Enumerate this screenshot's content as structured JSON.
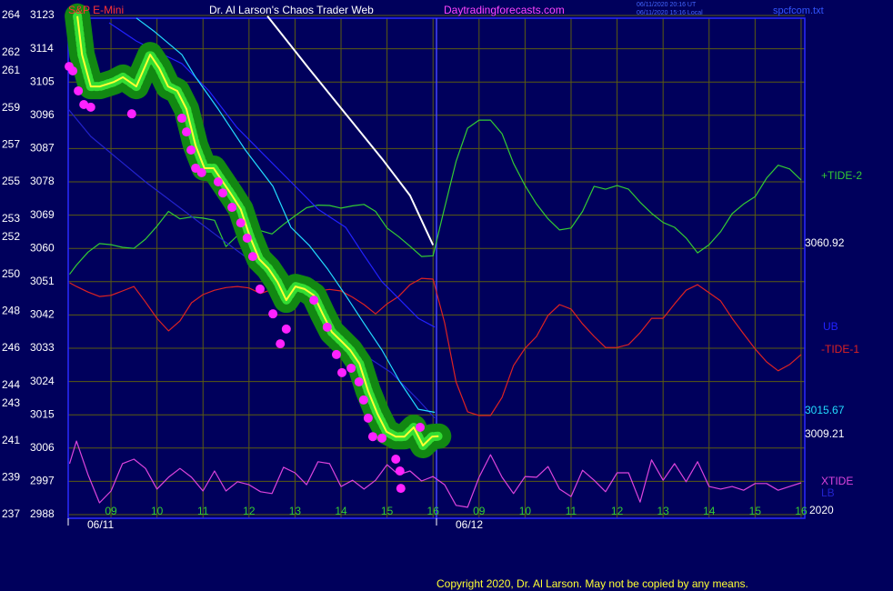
{
  "chart_data": {
    "type": "line",
    "title": "Dr. Al Larson's Chaos Trader Web",
    "instrument": "S&P E-Mini",
    "site": "Daytradingforecasts.com",
    "timestamps": [
      "06/11/2020 20:16 UT",
      "06/11/2020 15:16 Local"
    ],
    "file": "spcfcom.txt",
    "copyright": "Copyright 2020, Dr. Al Larson. May not be copied by any means.",
    "date_labels": [
      "06/11",
      "06/12"
    ],
    "year_label": "2020",
    "grid": true,
    "xlim": [
      0.07,
      16.08
    ],
    "xticks": [
      {
        "value": 1,
        "label": "09"
      },
      {
        "value": 2,
        "label": "10"
      },
      {
        "value": 3,
        "label": "11"
      },
      {
        "value": 4,
        "label": "12"
      },
      {
        "value": 5,
        "label": "13"
      },
      {
        "value": 6,
        "label": "14"
      },
      {
        "value": 7,
        "label": "15"
      },
      {
        "value": 8,
        "label": "16"
      },
      {
        "value": 9,
        "label": "09"
      },
      {
        "value": 10,
        "label": "10"
      },
      {
        "value": 11,
        "label": "11"
      },
      {
        "value": 12,
        "label": "12"
      },
      {
        "value": 13,
        "label": "13"
      },
      {
        "value": 14,
        "label": "14"
      },
      {
        "value": 15,
        "label": "15"
      },
      {
        "value": 16,
        "label": "16"
      }
    ],
    "ylim": [
      2988,
      3123
    ],
    "yticks": [
      3123,
      3114,
      3105,
      3096,
      3087,
      3078,
      3069,
      3060,
      3051,
      3042,
      3033,
      3024,
      3015,
      3006,
      2997,
      2988
    ],
    "y2lim": [
      237,
      264
    ],
    "y2ticks": [
      264,
      262,
      261,
      259,
      257,
      255,
      253,
      252,
      250,
      248,
      246,
      244,
      243,
      241,
      239,
      237
    ],
    "series": [
      {
        "name": "+TIDE-2",
        "color": "#33cc33",
        "x": [
          0.1,
          0.25,
          0.5,
          0.75,
          1,
          1.25,
          1.5,
          1.75,
          2,
          2.25,
          2.5,
          2.75,
          3,
          3.25,
          3.5,
          3.75,
          4,
          4.25,
          4.5,
          4.75,
          5,
          5.25,
          5.5,
          5.75,
          6,
          6.25,
          6.5,
          6.75,
          7,
          7.25,
          7.5,
          7.75,
          8,
          8.25,
          8.5,
          8.75,
          9,
          9.25,
          9.5,
          9.75,
          10,
          10.25,
          10.5,
          10.75,
          11,
          11.25,
          11.5,
          11.75,
          12,
          12.25,
          12.5,
          12.75,
          13,
          13.25,
          13.5,
          13.75,
          14,
          14.25,
          14.5,
          14.75,
          15,
          15.25,
          15.5,
          15.75,
          16
        ],
        "values": [
          3053,
          3055.5,
          3059,
          3061.3,
          3061,
          3060.3,
          3060,
          3062.5,
          3066,
          3070,
          3068,
          3068.5,
          3068.2,
          3067.6,
          3060.5,
          3063.5,
          3064.6,
          3064.8,
          3063.9,
          3066.5,
          3068.8,
          3071,
          3071.7,
          3071.6,
          3070.9,
          3071.5,
          3071.9,
          3070,
          3065.5,
          3063.2,
          3060.6,
          3057.8,
          3058,
          3071,
          3083.5,
          3092.5,
          3094.7,
          3094.7,
          3091,
          3083,
          3077,
          3072,
          3068,
          3065,
          3065.5,
          3070,
          3076.8,
          3076,
          3077,
          3076,
          3072.5,
          3069.5,
          3067,
          3065.7,
          3062.8,
          3058.8,
          3061,
          3064.5,
          3069.4,
          3072,
          3074,
          3079,
          3082.5,
          3081.5,
          3078.5
        ]
      },
      {
        "name": "-TIDE-1",
        "color": "#dd2222",
        "x": [
          0.1,
          0.25,
          0.5,
          0.75,
          1,
          1.25,
          1.5,
          1.75,
          2,
          2.25,
          2.5,
          2.75,
          3,
          3.25,
          3.5,
          3.75,
          4,
          4.25,
          4.5,
          4.75,
          5,
          5.25,
          5.5,
          5.75,
          6,
          6.25,
          6.5,
          6.75,
          7,
          7.25,
          7.5,
          7.75,
          8,
          8.25,
          8.5,
          8.75,
          9,
          9.25,
          9.5,
          9.75,
          10,
          10.25,
          10.5,
          10.75,
          11,
          11.25,
          11.5,
          11.75,
          12,
          12.25,
          12.5,
          12.75,
          13,
          13.25,
          13.5,
          13.75,
          14,
          14.25,
          14.5,
          14.75,
          15,
          15.25,
          15.5,
          15.75,
          16
        ],
        "values": [
          3050.7,
          3049.7,
          3048.2,
          3047,
          3047.3,
          3048.5,
          3049.7,
          3045.5,
          3041.1,
          3037.7,
          3040.4,
          3045.3,
          3047.5,
          3048.7,
          3049.4,
          3049.7,
          3049.3,
          3047.8,
          3048.9,
          3048.7,
          3048.5,
          3048.1,
          3048.5,
          3048.9,
          3048.5,
          3046.8,
          3044.8,
          3042.3,
          3045,
          3047,
          3050.2,
          3051.9,
          3051.7,
          3039.9,
          3023.9,
          3015.8,
          3014.8,
          3014.8,
          3019.7,
          3028.3,
          3033,
          3036.2,
          3041.9,
          3044.8,
          3043.6,
          3039.6,
          3036.2,
          3033.2,
          3033.2,
          3034,
          3037.2,
          3041.1,
          3041.1,
          3045,
          3048.7,
          3050.2,
          3048,
          3045.8,
          3041.1,
          3036.9,
          3032.8,
          3029.3,
          3026.9,
          3028.6,
          3031.3
        ]
      },
      {
        "name": "XTIDE",
        "color": "#dd44dd",
        "x": [
          0.1,
          0.25,
          0.5,
          0.75,
          1,
          1.25,
          1.5,
          1.75,
          2,
          2.25,
          2.5,
          2.75,
          3,
          3.25,
          3.5,
          3.75,
          4,
          4.25,
          4.5,
          4.75,
          5,
          5.25,
          5.5,
          5.75,
          6,
          6.25,
          6.5,
          6.75,
          7,
          7.25,
          7.5,
          7.75,
          8,
          8.25,
          8.5,
          8.75,
          9,
          9.25,
          9.5,
          9.75,
          10,
          10.25,
          10.5,
          10.75,
          11,
          11.25,
          11.5,
          11.75,
          12,
          12.25,
          12.5,
          12.75,
          13,
          13.25,
          13.5,
          13.75,
          14,
          14.25,
          14.5,
          14.75,
          15,
          15.25,
          15.5,
          15.75,
          16
        ],
        "values": [
          3001.8,
          3007.9,
          2998.8,
          2991.2,
          2994.4,
          3001.8,
          3003,
          3000.5,
          2994.9,
          2998.1,
          3000.5,
          2998.1,
          2994.4,
          2999.8,
          2994.4,
          2996.9,
          2996.1,
          2994.2,
          2993.7,
          3000.8,
          2999.3,
          2996.1,
          3002.3,
          3001.8,
          2995.6,
          2997.3,
          2994.9,
          2997.3,
          3001.5,
          2998.8,
          2999.8,
          2997.1,
          2998.3,
          2996.1,
          2990.5,
          2990,
          2998.1,
          3004.2,
          2998.1,
          2993.7,
          2998.3,
          2998.1,
          3001,
          2994.9,
          2992.9,
          3000,
          2997.3,
          2994.2,
          2999.3,
          2999.3,
          2991.4,
          3002.8,
          2997.3,
          3001.8,
          2996.9,
          3002.3,
          2995.6,
          2994.9,
          2995.6,
          2994.6,
          2996.4,
          2996.4,
          2994.6,
          2995.6,
          2996.6
        ]
      },
      {
        "name": "UB",
        "color": "#2222ff",
        "x": [
          0.96,
          1.55,
          2.14,
          2.54,
          3.13,
          3.73,
          4.32,
          4.91,
          5.5,
          6.1,
          6.49,
          6.89,
          7.28,
          7.68,
          8.04
        ],
        "values": [
          3121,
          3116.1,
          3112.4,
          3110,
          3102.6,
          3092.8,
          3085.4,
          3078,
          3070.6,
          3065.7,
          3058.3,
          3051,
          3046.1,
          3041.1,
          3038.7
        ]
      },
      {
        "name": "LB",
        "color": "#2222cc",
        "x": [
          0.07,
          0.56,
          1.16,
          1.75,
          2.54,
          3.33,
          4.12,
          4.91,
          5.7,
          6.49,
          7.09,
          7.68,
          8.04
        ],
        "values": [
          3097.7,
          3090.3,
          3084.1,
          3078,
          3070.6,
          3063.2,
          3055.9,
          3048.5,
          3039.9,
          3031.3,
          3026.4,
          3019,
          3014.1
        ]
      },
      {
        "color": "#22ddff",
        "x": [
          1.55,
          1.95,
          2.54,
          2.84,
          3.33,
          3.92,
          4.52,
          4.91,
          5.31,
          5.7,
          6.1,
          6.49,
          6.89,
          7.28,
          7.68,
          8.04
        ],
        "values": [
          3122.3,
          3118.6,
          3112.4,
          3106.3,
          3097.7,
          3086.6,
          3076.8,
          3065.7,
          3060.8,
          3054.6,
          3047.3,
          3039.9,
          3032.5,
          3023.9,
          3016.5,
          3015.67
        ]
      },
      {
        "color": "#ffffff",
        "x": [
          4.4,
          5.3,
          6.1,
          6.9,
          7.5,
          8.0
        ],
        "values": [
          3122.8,
          3108.7,
          3096.4,
          3084.1,
          3074.3,
          3060.92
        ]
      },
      {
        "color": "#ffff33",
        "x": [
          0.27,
          0.37,
          0.56,
          0.76,
          1.06,
          1.26,
          1.55,
          1.85,
          2.05,
          2.24,
          2.44,
          2.64,
          2.84,
          3.03,
          3.23,
          3.43,
          3.63,
          3.82,
          4.02,
          4.22,
          4.42,
          4.62,
          4.81,
          5.01,
          5.21,
          5.41,
          5.6,
          5.8,
          6.0,
          6.2,
          6.4,
          6.59,
          6.79,
          6.99,
          7.19,
          7.38,
          7.58,
          7.78,
          7.98,
          8.12
        ],
        "values": [
          3122.8,
          3112.4,
          3103.8,
          3103.8,
          3105,
          3106.3,
          3103.8,
          3112.4,
          3108.7,
          3103.8,
          3102.6,
          3097.7,
          3087.8,
          3081.7,
          3081.7,
          3078,
          3074.3,
          3070.6,
          3063.2,
          3057.1,
          3054.6,
          3050.9,
          3046,
          3049.7,
          3049,
          3047.3,
          3042.3,
          3037.4,
          3035,
          3032.5,
          3028.8,
          3021.4,
          3015.3,
          3010.4,
          3009.1,
          3009.1,
          3011.6,
          3006.7,
          3009.1,
          3009.21
        ]
      },
      {
        "type": "scatter",
        "color": "#ff22ff",
        "x": [
          0.09,
          0.17,
          0.29,
          0.41,
          0.56,
          1.45,
          2.54,
          2.64,
          2.74,
          2.84,
          2.97,
          3.33,
          3.43,
          3.63,
          3.82,
          3.96,
          4.08,
          4.24,
          4.52,
          4.68,
          4.81,
          5.41,
          5.7,
          5.9,
          6.02,
          6.22,
          6.39,
          6.49,
          6.59,
          6.69,
          6.89,
          7.19,
          7.28,
          7.3,
          7.72
        ],
        "values": [
          3109.2,
          3108,
          3102.6,
          3098.9,
          3098.2,
          3096.4,
          3095.2,
          3091.5,
          3086.6,
          3081.7,
          3080.5,
          3078,
          3075,
          3071.1,
          3066.9,
          3062.8,
          3057.8,
          3049,
          3042.3,
          3034.2,
          3038.2,
          3046,
          3038.7,
          3031.3,
          3026.4,
          3027.6,
          3023.9,
          3019,
          3014.1,
          3009.1,
          3008.7,
          3003,
          2999.8,
          2995.1,
          3011.6
        ]
      }
    ]
  }
}
